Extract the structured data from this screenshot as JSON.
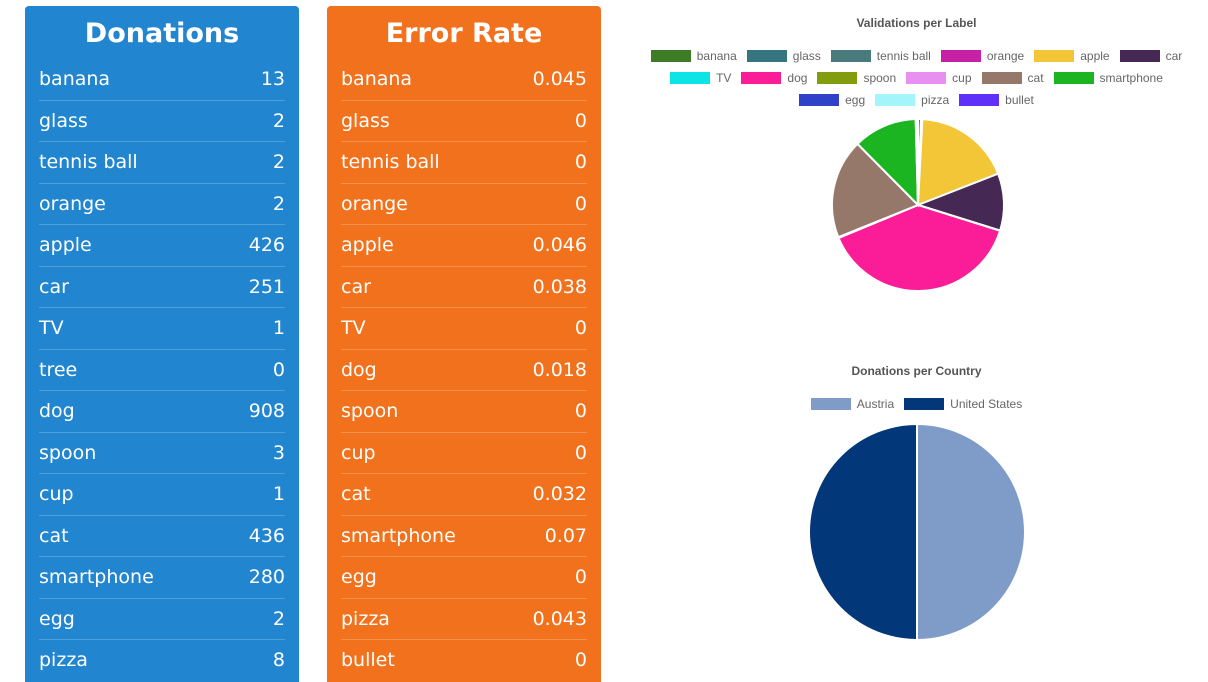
{
  "donations": {
    "title": "Donations",
    "rows": [
      {
        "label": "banana",
        "value": "13"
      },
      {
        "label": "glass",
        "value": "2"
      },
      {
        "label": "tennis ball",
        "value": "2"
      },
      {
        "label": "orange",
        "value": "2"
      },
      {
        "label": "apple",
        "value": "426"
      },
      {
        "label": "car",
        "value": "251"
      },
      {
        "label": "TV",
        "value": "1"
      },
      {
        "label": "tree",
        "value": "0"
      },
      {
        "label": "dog",
        "value": "908"
      },
      {
        "label": "spoon",
        "value": "3"
      },
      {
        "label": "cup",
        "value": "1"
      },
      {
        "label": "cat",
        "value": "436"
      },
      {
        "label": "smartphone",
        "value": "280"
      },
      {
        "label": "egg",
        "value": "2"
      },
      {
        "label": "pizza",
        "value": "8"
      }
    ]
  },
  "error_rate": {
    "title": "Error Rate",
    "rows": [
      {
        "label": "banana",
        "value": "0.045"
      },
      {
        "label": "glass",
        "value": "0"
      },
      {
        "label": "tennis ball",
        "value": "0"
      },
      {
        "label": "orange",
        "value": "0"
      },
      {
        "label": "apple",
        "value": "0.046"
      },
      {
        "label": "car",
        "value": "0.038"
      },
      {
        "label": "TV",
        "value": "0"
      },
      {
        "label": "dog",
        "value": "0.018"
      },
      {
        "label": "spoon",
        "value": "0"
      },
      {
        "label": "cup",
        "value": "0"
      },
      {
        "label": "cat",
        "value": "0.032"
      },
      {
        "label": "smartphone",
        "value": "0.07"
      },
      {
        "label": "egg",
        "value": "0"
      },
      {
        "label": "pizza",
        "value": "0.043"
      },
      {
        "label": "bullet",
        "value": "0"
      }
    ]
  },
  "chart_data": [
    {
      "type": "pie",
      "title": "Validations per Label",
      "legend_position": "top",
      "categories": [
        "banana",
        "glass",
        "tennis ball",
        "orange",
        "apple",
        "car",
        "TV",
        "dog",
        "spoon",
        "cup",
        "cat",
        "smartphone",
        "egg",
        "pizza",
        "bullet"
      ],
      "values": [
        13,
        2,
        2,
        2,
        426,
        251,
        1,
        908,
        3,
        1,
        436,
        280,
        2,
        8,
        0
      ],
      "colors": [
        "#3e7d25",
        "#347580",
        "#4a7b7c",
        "#c520a6",
        "#f2c636",
        "#452853",
        "#0de4e6",
        "#fb1c98",
        "#819c0d",
        "#e890ef",
        "#957869",
        "#1ab521",
        "#2f41c9",
        "#a2f6f9",
        "#5e30f8"
      ]
    },
    {
      "type": "pie",
      "title": "Donations per Country",
      "legend_position": "top",
      "categories": [
        "Austria",
        "United States"
      ],
      "values": [
        50,
        50
      ],
      "colors": [
        "#7f9cc9",
        "#02377a"
      ]
    }
  ]
}
